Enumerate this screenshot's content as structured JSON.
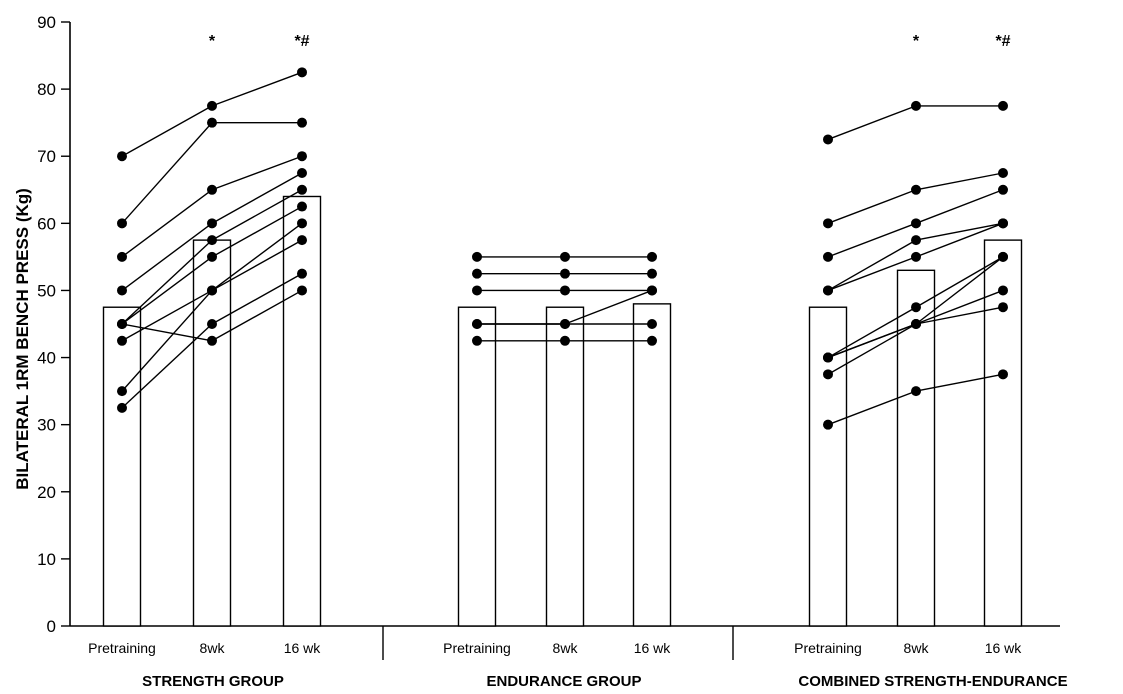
{
  "chart_data": {
    "type": "bar",
    "ylabel": "BILATERAL 1RM BENCH PRESS (Kg)",
    "ylim": [
      0,
      90
    ],
    "yticks": [
      0,
      10,
      20,
      30,
      40,
      50,
      60,
      70,
      80,
      90
    ],
    "grid": false,
    "groups": [
      {
        "name": "STRENGTH GROUP",
        "timepoints": [
          "Pretraining",
          "8wk",
          "16 wk"
        ],
        "means": [
          47.5,
          57.5,
          64.0
        ],
        "significance": [
          "",
          "*",
          "*#"
        ],
        "subjects": [
          [
            70.0,
            77.5,
            82.5
          ],
          [
            60.0,
            75.0,
            75.0
          ],
          [
            55.0,
            65.0,
            70.0
          ],
          [
            50.0,
            60.0,
            67.5
          ],
          [
            45.0,
            57.5,
            65.0
          ],
          [
            45.0,
            55.0,
            62.5
          ],
          [
            42.5,
            50.0,
            60.0
          ],
          [
            35.0,
            50.0,
            57.5
          ],
          [
            32.5,
            45.0,
            52.5
          ],
          [
            45.0,
            42.5,
            50.0
          ]
        ]
      },
      {
        "name": "ENDURANCE GROUP",
        "timepoints": [
          "Pretraining",
          "8wk",
          "16 wk"
        ],
        "means": [
          47.5,
          47.5,
          48.0
        ],
        "significance": [
          "",
          "",
          ""
        ],
        "subjects": [
          [
            55.0,
            55.0,
            55.0
          ],
          [
            52.5,
            52.5,
            52.5
          ],
          [
            50.0,
            50.0,
            50.0
          ],
          [
            45.0,
            45.0,
            50.0
          ],
          [
            45.0,
            45.0,
            45.0
          ],
          [
            42.5,
            42.5,
            42.5
          ]
        ]
      },
      {
        "name": "COMBINED STRENGTH-ENDURANCE",
        "timepoints": [
          "Pretraining",
          "8wk",
          "16 wk"
        ],
        "means": [
          47.5,
          53.0,
          57.5
        ],
        "significance": [
          "",
          "*",
          "*#"
        ],
        "subjects": [
          [
            72.5,
            77.5,
            77.5
          ],
          [
            60.0,
            65.0,
            67.5
          ],
          [
            55.0,
            60.0,
            65.0
          ],
          [
            50.0,
            57.5,
            60.0
          ],
          [
            50.0,
            55.0,
            60.0
          ],
          [
            40.0,
            47.5,
            55.0
          ],
          [
            40.0,
            45.0,
            50.0
          ],
          [
            37.5,
            45.0,
            47.5
          ],
          [
            40.0,
            45.0,
            55.0
          ],
          [
            30.0,
            35.0,
            37.5
          ]
        ]
      }
    ]
  }
}
